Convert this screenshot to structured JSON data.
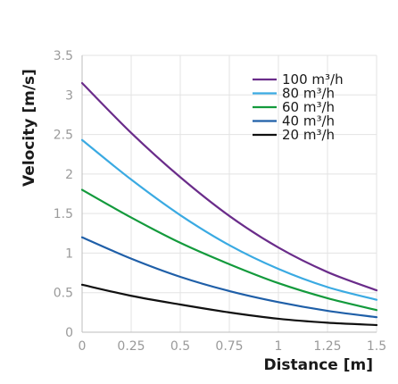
{
  "chart_data": {
    "type": "line",
    "xlabel": "Distance [m]",
    "ylabel": "Velocity [m/s]",
    "xlim": [
      0,
      1.5
    ],
    "ylim": [
      0,
      3.5
    ],
    "x_ticks": [
      "0",
      "0.25",
      "0.5",
      "0.75",
      "1",
      "1.25",
      "1.5"
    ],
    "y_ticks": [
      "0",
      "0.5",
      "1",
      "1.5",
      "2",
      "2.5",
      "3",
      "3.5"
    ],
    "grid": true,
    "legend_position": "top-right",
    "x": [
      0,
      0.25,
      0.5,
      0.75,
      1.0,
      1.25,
      1.5
    ],
    "series": [
      {
        "name": "100 m³/h",
        "color": "#6a2c8a",
        "values": [
          3.15,
          2.52,
          1.96,
          1.47,
          1.07,
          0.76,
          0.53
        ]
      },
      {
        "name": "80 m³/h",
        "color": "#3aaae2",
        "values": [
          2.43,
          1.93,
          1.48,
          1.1,
          0.8,
          0.57,
          0.41
        ]
      },
      {
        "name": "60 m³/h",
        "color": "#139a3c",
        "values": [
          1.8,
          1.45,
          1.13,
          0.86,
          0.62,
          0.43,
          0.28
        ]
      },
      {
        "name": "40 m³/h",
        "color": "#1f5fa8",
        "values": [
          1.2,
          0.93,
          0.7,
          0.52,
          0.38,
          0.27,
          0.19
        ]
      },
      {
        "name": "20 m³/h",
        "color": "#111111",
        "values": [
          0.6,
          0.46,
          0.35,
          0.25,
          0.17,
          0.12,
          0.09
        ]
      }
    ]
  }
}
